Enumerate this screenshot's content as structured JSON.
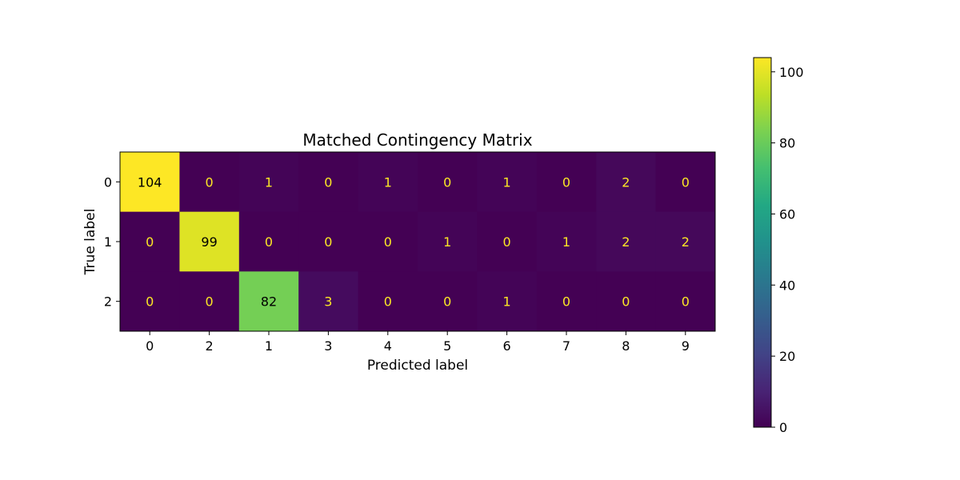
{
  "chart_data": {
    "type": "heatmap",
    "title": "Matched Contingency Matrix",
    "xlabel": "Predicted label",
    "ylabel": "True label",
    "x_categories": [
      "0",
      "2",
      "1",
      "3",
      "4",
      "5",
      "6",
      "7",
      "8",
      "9"
    ],
    "y_categories": [
      "0",
      "1",
      "2"
    ],
    "values": [
      [
        104,
        0,
        1,
        0,
        1,
        0,
        1,
        0,
        2,
        0
      ],
      [
        0,
        99,
        0,
        0,
        0,
        1,
        0,
        1,
        2,
        2
      ],
      [
        0,
        0,
        82,
        3,
        0,
        0,
        1,
        0,
        0,
        0
      ]
    ],
    "colormap": "viridis",
    "color_range": [
      0,
      104
    ],
    "colorbar_ticks": [
      0,
      20,
      40,
      60,
      80,
      100
    ],
    "grid": false,
    "text_color_light": "#fde725",
    "text_color_dark": "#000000"
  }
}
